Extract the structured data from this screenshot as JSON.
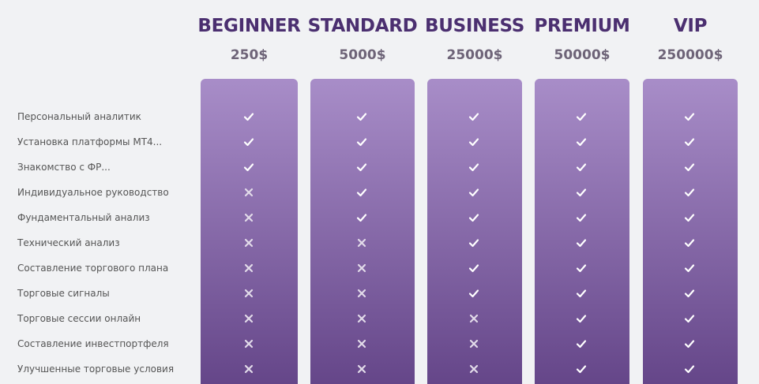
{
  "features": [
    "Персональный аналитик",
    "Установка платформы МТ4...",
    "Знакомство с ФР...",
    "Индивидуальное руководство",
    "Фундаментальный анализ",
    "Технический анализ",
    "Составление торгового плана",
    "Торговые сигналы",
    "Торговые сессии онлайн",
    "Составление инвестпортфеля",
    "Улучшенные торговые условия"
  ],
  "plans": [
    {
      "name": "BEGINNER",
      "price": "250$",
      "included": [
        true,
        true,
        true,
        false,
        false,
        false,
        false,
        false,
        false,
        false,
        false
      ]
    },
    {
      "name": "STANDARD",
      "price": "5000$",
      "included": [
        true,
        true,
        true,
        true,
        true,
        false,
        false,
        false,
        false,
        false,
        false
      ]
    },
    {
      "name": "BUSINESS",
      "price": "25000$",
      "included": [
        true,
        true,
        true,
        true,
        true,
        true,
        true,
        true,
        false,
        false,
        false
      ]
    },
    {
      "name": "PREMIUM",
      "price": "50000$",
      "included": [
        true,
        true,
        true,
        true,
        true,
        true,
        true,
        true,
        true,
        true,
        true
      ]
    },
    {
      "name": "VIP",
      "price": "250000$",
      "included": [
        true,
        true,
        true,
        true,
        true,
        true,
        true,
        true,
        true,
        true,
        true
      ]
    }
  ]
}
